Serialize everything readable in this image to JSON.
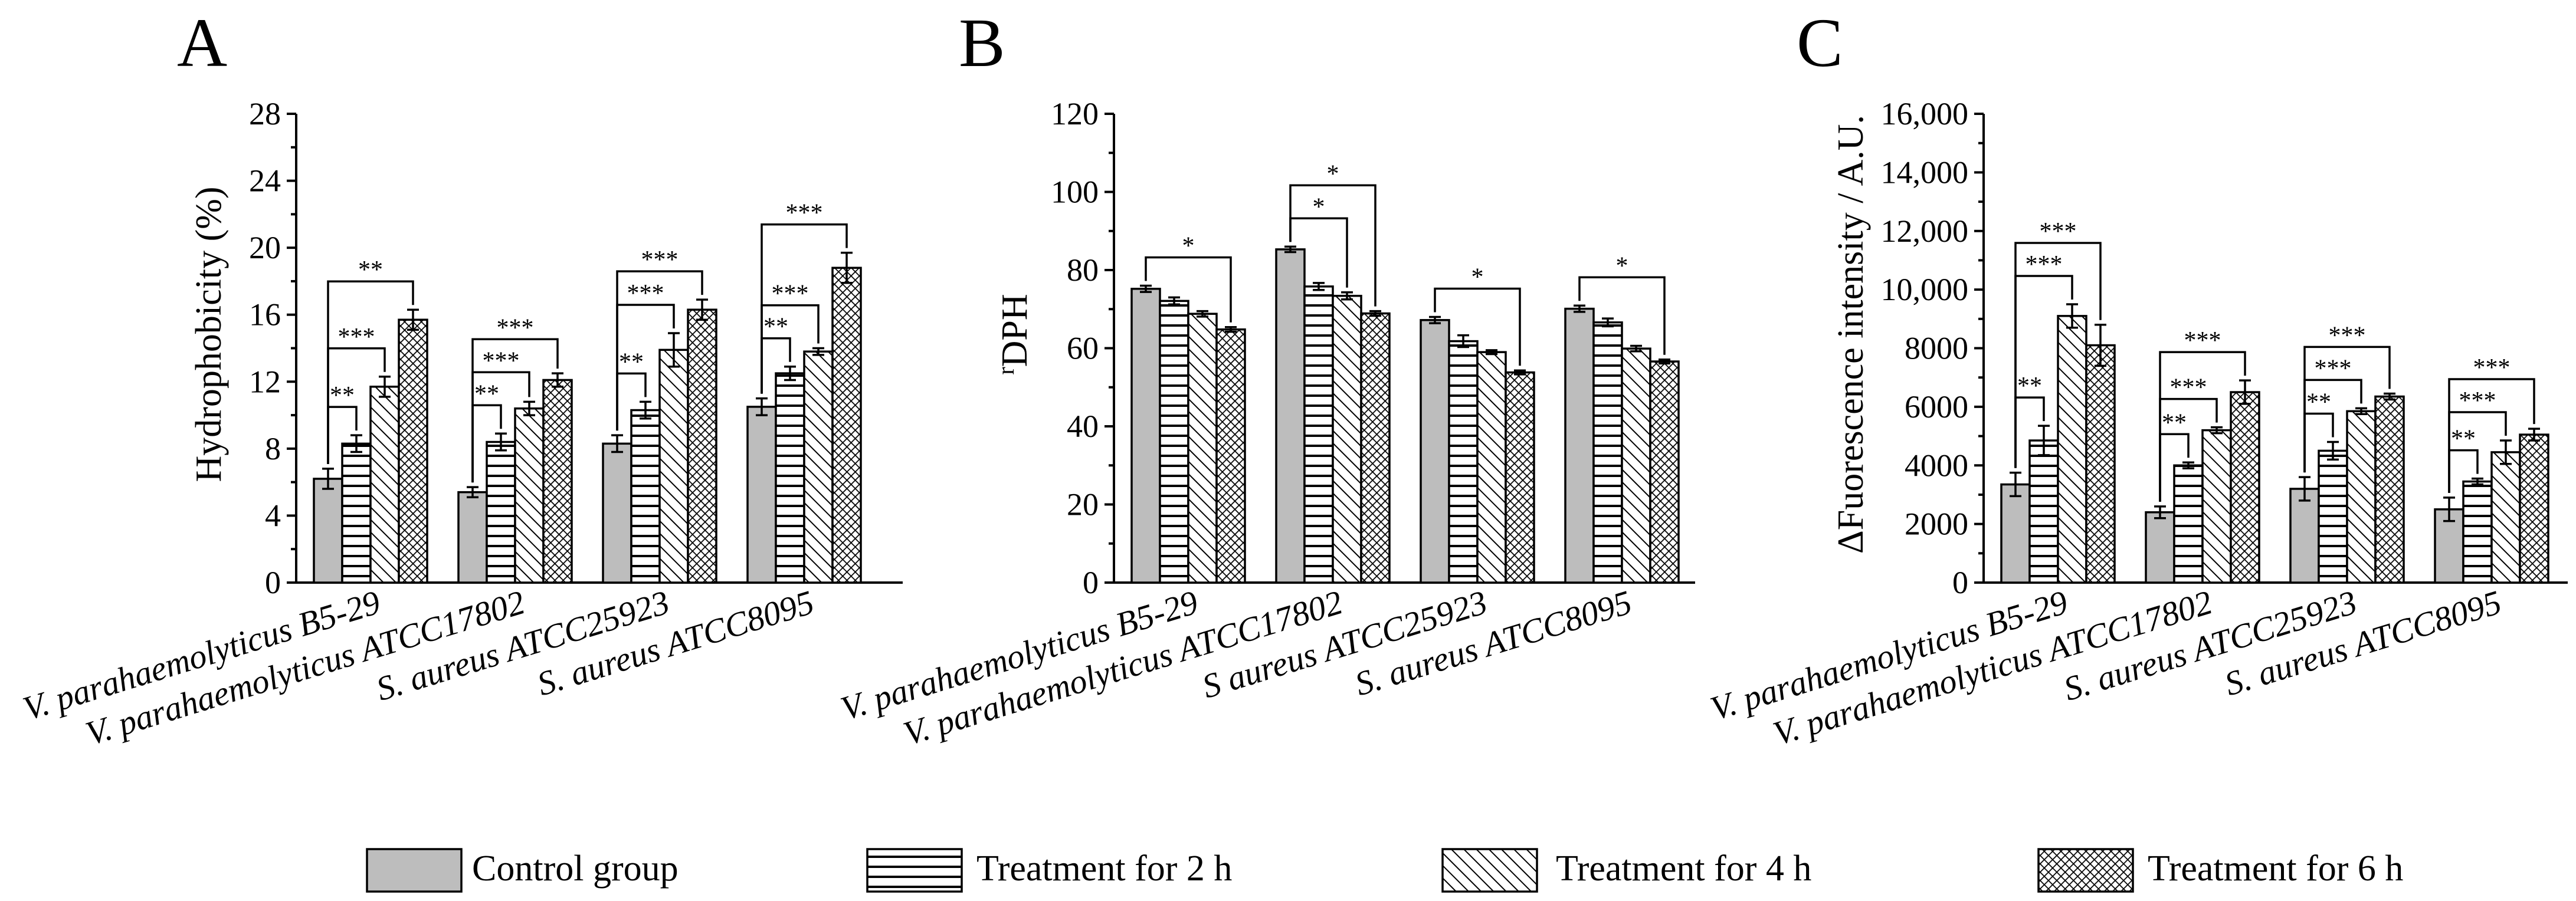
{
  "series": [
    "Control group",
    "Treatment for 2 h",
    "Treatment for 4 h",
    "Treatment for 6 h"
  ],
  "categories": [
    "V. parahaemolyticus B5-29",
    "V. parahaemolyticus ATCC17802",
    "S. aureus ATCC25923",
    "S. aureus ATCC8095"
  ],
  "chart_data": [
    {
      "type": "bar",
      "panel": "A",
      "ylabel": "Hydrophobicity (%)",
      "ylim": [
        0,
        28
      ],
      "yticks": [
        0,
        4,
        8,
        12,
        16,
        20,
        24,
        28
      ],
      "ytick_labels": [
        "0",
        "4",
        "8",
        "12",
        "16",
        "20",
        "24",
        "28"
      ],
      "categories": [
        "V. parahaemolyticus B5-29",
        "V. parahaemolyticus ATCC17802",
        "S. aureus ATCC25923",
        "S. aureus ATCC8095"
      ],
      "series": [
        {
          "name": "Control group",
          "values": [
            6.2,
            5.4,
            8.3,
            10.5
          ],
          "errors": [
            0.6,
            0.3,
            0.5,
            0.5
          ]
        },
        {
          "name": "Treatment for 2 h",
          "values": [
            8.3,
            8.4,
            10.3,
            12.5
          ],
          "errors": [
            0.5,
            0.5,
            0.5,
            0.4
          ]
        },
        {
          "name": "Treatment for 4 h",
          "values": [
            11.7,
            10.4,
            13.9,
            13.8
          ],
          "errors": [
            0.6,
            0.4,
            1.0,
            0.2
          ]
        },
        {
          "name": "Treatment for 6 h",
          "values": [
            15.7,
            12.1,
            16.3,
            18.8
          ],
          "errors": [
            0.6,
            0.4,
            0.6,
            0.9
          ]
        }
      ],
      "significance": [
        [
          {
            "to": 1,
            "label": "**"
          },
          {
            "to": 2,
            "label": "***"
          },
          {
            "to": 3,
            "label": "**"
          }
        ],
        [
          {
            "to": 1,
            "label": "**"
          },
          {
            "to": 2,
            "label": "***"
          },
          {
            "to": 3,
            "label": "***"
          }
        ],
        [
          {
            "to": 1,
            "label": "**"
          },
          {
            "to": 2,
            "label": "***"
          },
          {
            "to": 3,
            "label": "***"
          }
        ],
        [
          {
            "to": 1,
            "label": "**"
          },
          {
            "to": 2,
            "label": "***"
          },
          {
            "to": 3,
            "label": "***"
          }
        ]
      ]
    },
    {
      "type": "bar",
      "panel": "B",
      "ylabel": "rDPH",
      "ylim": [
        0,
        120
      ],
      "yticks": [
        0,
        20,
        40,
        60,
        80,
        100,
        120
      ],
      "ytick_labels": [
        "0",
        "20",
        "40",
        "60",
        "80",
        "100",
        "120"
      ],
      "categories": [
        "V. parahaemolyticus B5-29",
        "V. parahaemolyticus ATCC17802",
        "S aureus ATCC25923",
        "S. aureus ATCC8095"
      ],
      "series": [
        {
          "name": "Control group",
          "values": [
            75.2,
            85.3,
            67.2,
            70.1
          ],
          "errors": [
            0.8,
            0.7,
            0.8,
            0.8
          ]
        },
        {
          "name": "Treatment for 2 h",
          "values": [
            72.1,
            75.8,
            61.8,
            66.6
          ],
          "errors": [
            0.9,
            0.9,
            1.5,
            1.0
          ]
        },
        {
          "name": "Treatment for 4 h",
          "values": [
            68.8,
            73.4,
            59.0,
            59.9
          ],
          "errors": [
            0.7,
            0.9,
            0.5,
            0.7
          ]
        },
        {
          "name": "Treatment for 6 h",
          "values": [
            64.8,
            68.9,
            53.8,
            56.6
          ],
          "errors": [
            0.6,
            0.6,
            0.5,
            0.5
          ]
        }
      ],
      "significance": [
        [
          {
            "to": 3,
            "label": "*"
          }
        ],
        [
          {
            "to": 2,
            "label": "*"
          },
          {
            "to": 3,
            "label": "*"
          }
        ],
        [
          {
            "to": 3,
            "label": "*"
          }
        ],
        [
          {
            "to": 3,
            "label": "*"
          }
        ]
      ]
    },
    {
      "type": "bar",
      "panel": "C",
      "ylabel": "ΔFuorescence intensity / A.U.",
      "ylim": [
        0,
        16000
      ],
      "yticks": [
        0,
        2000,
        4000,
        6000,
        8000,
        10000,
        12000,
        14000,
        16000
      ],
      "ytick_labels": [
        "0",
        "2000",
        "4000",
        "6000",
        "8000",
        "10,000",
        "12,000",
        "14,000",
        "16,000"
      ],
      "categories": [
        "V. parahaemolyticus B5-29",
        "V. parahaemolyticus ATCC17802",
        "S. aureus ATCC25923",
        "S. aureus ATCC8095"
      ],
      "series": [
        {
          "name": "Control group",
          "values": [
            3350,
            2400,
            3200,
            2500
          ],
          "errors": [
            400,
            200,
            400,
            400
          ]
        },
        {
          "name": "Treatment for 2 h",
          "values": [
            4850,
            4000,
            4500,
            3450
          ],
          "errors": [
            500,
            100,
            300,
            100
          ]
        },
        {
          "name": "Treatment for 4 h",
          "values": [
            9100,
            5200,
            5850,
            4450
          ],
          "errors": [
            400,
            100,
            100,
            400
          ]
        },
        {
          "name": "Treatment for 6 h",
          "values": [
            8100,
            6500,
            6350,
            5050
          ],
          "errors": [
            700,
            400,
            100,
            200
          ]
        }
      ],
      "significance": [
        [
          {
            "to": 1,
            "label": "**"
          },
          {
            "to": 2,
            "label": "***"
          },
          {
            "to": 3,
            "label": "***"
          }
        ],
        [
          {
            "to": 1,
            "label": "**"
          },
          {
            "to": 2,
            "label": "***"
          },
          {
            "to": 3,
            "label": "***"
          }
        ],
        [
          {
            "to": 1,
            "label": "**"
          },
          {
            "to": 2,
            "label": "***"
          },
          {
            "to": 3,
            "label": "***"
          }
        ],
        [
          {
            "to": 1,
            "label": "**"
          },
          {
            "to": 2,
            "label": "***"
          },
          {
            "to": 3,
            "label": "***"
          }
        ]
      ]
    }
  ]
}
